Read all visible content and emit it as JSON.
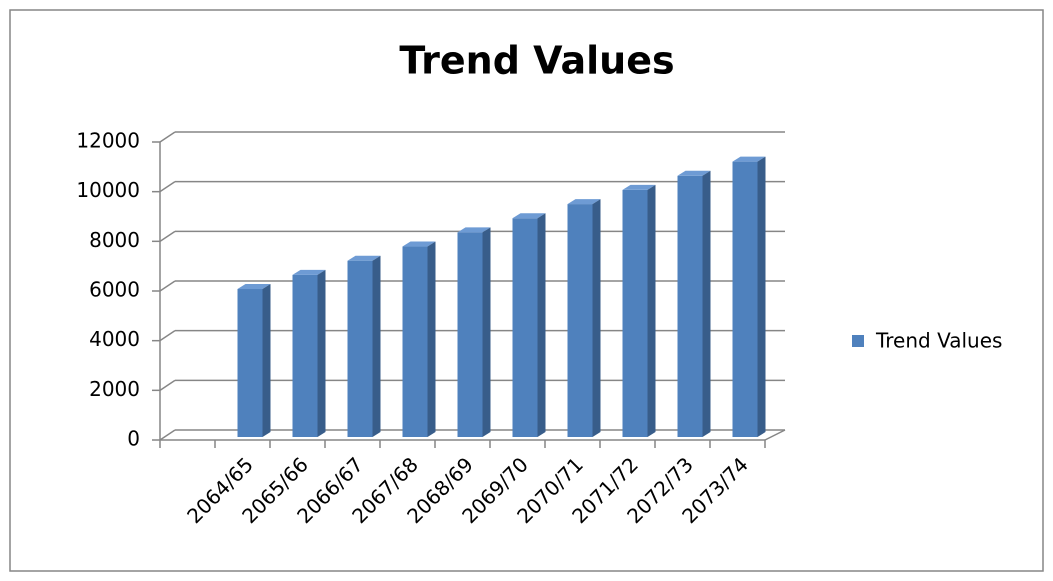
{
  "chart_data": {
    "type": "bar3d",
    "title": "Trend Values",
    "categories": [
      null,
      "2064/65",
      "2065/66",
      "2066/67",
      "2067/68",
      "2068/69",
      "2069/70",
      "2070/71",
      "2071/72",
      "2072/73",
      "2073/74"
    ],
    "series": [
      {
        "name": "Trend Values",
        "color": "#4f81bd",
        "values": [
          null,
          6080,
          6650,
          7220,
          7790,
          8360,
          8930,
          9500,
          10070,
          10640,
          11210
        ]
      }
    ],
    "ylim": [
      0,
      12000
    ],
    "yticks": [
      0,
      2000,
      4000,
      6000,
      8000,
      10000,
      12000
    ],
    "grid": true,
    "legend": "right"
  }
}
